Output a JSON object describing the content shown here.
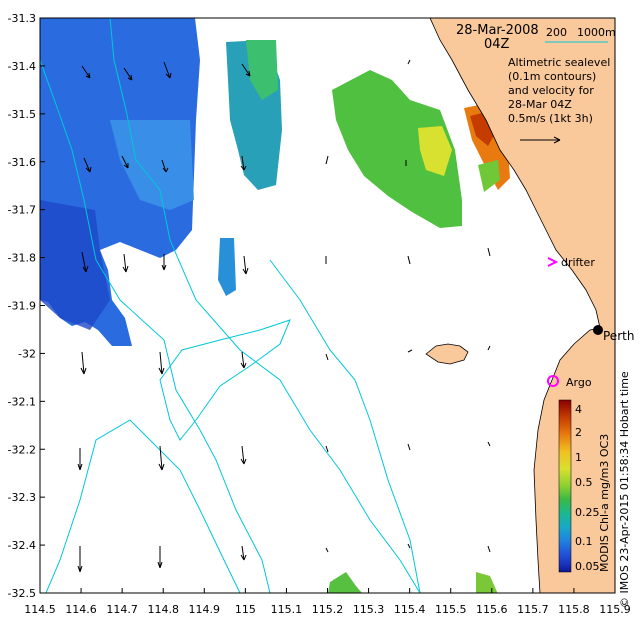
{
  "header": {
    "date": "28-Mar-2008",
    "time": "04Z",
    "depth_200": "200",
    "depth_1000": "1000m"
  },
  "legend_text": {
    "line1": "Altimetric sealevel",
    "line2": "(0.1m contours)",
    "line3": "and velocity for",
    "line4": "28-Mar 04Z",
    "line5": "0.5m/s (1kt 3h)"
  },
  "labels": {
    "drifter": "drifter",
    "perth": "Perth",
    "argo": "Argo"
  },
  "colorbar": {
    "title": "MODIS Chl-a mg/m3 OC3",
    "ticks": [
      "4",
      "2",
      "1",
      "0.5",
      "0.25",
      "0.1",
      "0.05"
    ],
    "colors": [
      "#8b0000",
      "#c43c00",
      "#e87a10",
      "#f0c020",
      "#d8e030",
      "#8cd030",
      "#38b848",
      "#1cb890",
      "#18a8c8",
      "#2080e0",
      "#2050d8",
      "#1830b8",
      "#0c1890"
    ]
  },
  "credit": "© IMOS 23-Apr-2015 01:58:34 Hobart time",
  "colors": {
    "land": "#f9c89b",
    "isobath": "#00c8d8",
    "drifter_marker": "#ff00ff",
    "argo_marker": "#ff00ff"
  },
  "chart_data": {
    "type": "map",
    "xlim": [
      114.5,
      115.9
    ],
    "ylim": [
      -32.5,
      -31.3
    ],
    "x_ticks": [
      "114.5",
      "114.6",
      "114.7",
      "114.8",
      "114.9",
      "115",
      "115.1",
      "115.2",
      "115.3",
      "115.4",
      "115.5",
      "115.6",
      "115.7",
      "115.8",
      "115.9"
    ],
    "y_ticks": [
      "-31.3",
      "-31.4",
      "-31.5",
      "-31.6",
      "-31.7",
      "-31.8",
      "-31.9",
      "-32",
      "-32.1",
      "-32.2",
      "-32.3",
      "-32.4",
      "-32.5"
    ]
  }
}
